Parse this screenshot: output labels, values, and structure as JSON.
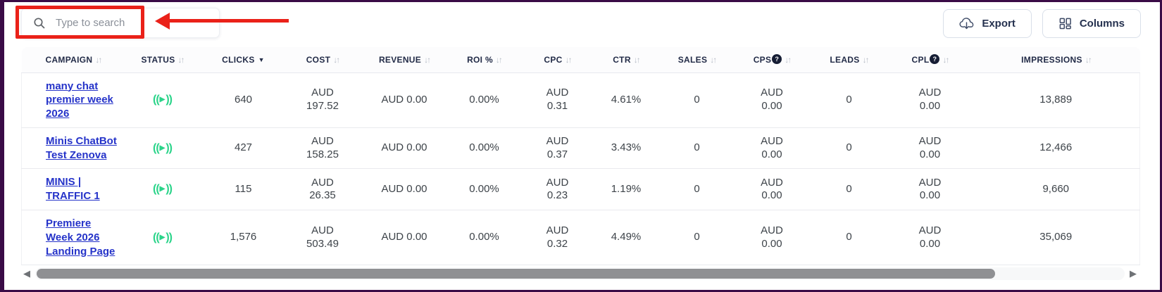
{
  "toolbar": {
    "search": {
      "placeholder": "Type to search"
    },
    "export_label": "Export",
    "columns_label": "Columns"
  },
  "table": {
    "columns": [
      {
        "key": "campaign",
        "label": "CAMPAIGN",
        "sort": "both"
      },
      {
        "key": "status",
        "label": "STATUS",
        "sort": "both"
      },
      {
        "key": "clicks",
        "label": "CLICKS",
        "sort": "desc"
      },
      {
        "key": "cost",
        "label": "COST",
        "sort": "both"
      },
      {
        "key": "revenue",
        "label": "REVENUE",
        "sort": "both"
      },
      {
        "key": "roi",
        "label": "ROI %",
        "sort": "both"
      },
      {
        "key": "cpc",
        "label": "CPC",
        "sort": "both"
      },
      {
        "key": "ctr",
        "label": "CTR",
        "sort": "both"
      },
      {
        "key": "sales",
        "label": "SALES",
        "sort": "both"
      },
      {
        "key": "cps",
        "label": "CPS",
        "sort": "both",
        "help": true
      },
      {
        "key": "leads",
        "label": "LEADS",
        "sort": "both"
      },
      {
        "key": "cpl",
        "label": "CPL",
        "sort": "both",
        "help": true
      },
      {
        "key": "impressions",
        "label": "IMPRESSIONS",
        "sort": "both"
      }
    ],
    "rows": [
      {
        "campaign": "many chat premier week 2026",
        "status": "active",
        "clicks": "640",
        "cost": "AUD 197.52",
        "revenue": "AUD 0.00",
        "roi": "0.00%",
        "cpc": "AUD 0.31",
        "ctr": "4.61%",
        "sales": "0",
        "cps": "AUD 0.00",
        "leads": "0",
        "cpl": "AUD 0.00",
        "impressions": "13,889"
      },
      {
        "campaign": "Minis ChatBot Test Zenova",
        "status": "active",
        "clicks": "427",
        "cost": "AUD 158.25",
        "revenue": "AUD 0.00",
        "roi": "0.00%",
        "cpc": "AUD 0.37",
        "ctr": "3.43%",
        "sales": "0",
        "cps": "AUD 0.00",
        "leads": "0",
        "cpl": "AUD 0.00",
        "impressions": "12,466"
      },
      {
        "campaign": "MINIS | TRAFFIC 1",
        "status": "active",
        "clicks": "115",
        "cost": "AUD 26.35",
        "revenue": "AUD 0.00",
        "roi": "0.00%",
        "cpc": "AUD 0.23",
        "ctr": "1.19%",
        "sales": "0",
        "cps": "AUD 0.00",
        "leads": "0",
        "cpl": "AUD 0.00",
        "impressions": "9,660"
      },
      {
        "campaign": "Premiere Week 2026 Landing Page",
        "status": "active",
        "clicks": "1,576",
        "cost": "AUD 503.49",
        "revenue": "AUD 0.00",
        "roi": "0.00%",
        "cpc": "AUD 0.32",
        "ctr": "4.49%",
        "sales": "0",
        "cps": "AUD 0.00",
        "leads": "0",
        "cpl": "AUD 0.00",
        "impressions": "35,069"
      }
    ]
  },
  "icons": {
    "sort_idle": "↓↑",
    "sort_desc": "▼",
    "help": "?",
    "scroll_left": "◀",
    "scroll_right": "▶"
  },
  "colors": {
    "frame_purple": "#3a0b46",
    "annotation_red": "#ea2119",
    "status_green": "#2bd48a",
    "link_blue": "#2533c9",
    "header_navy": "#222b47"
  }
}
